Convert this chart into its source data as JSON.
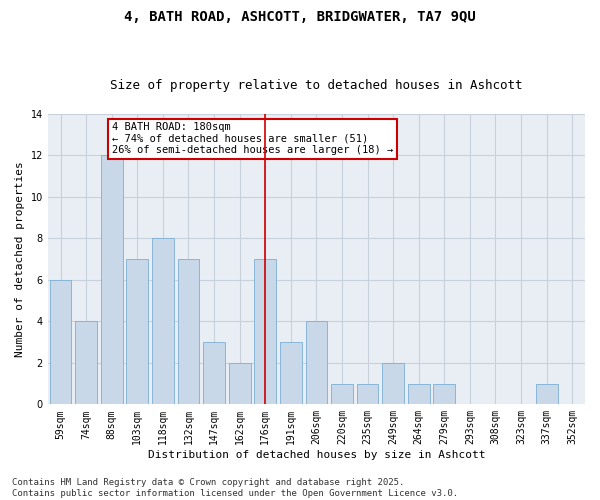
{
  "title_line1": "4, BATH ROAD, ASHCOTT, BRIDGWATER, TA7 9QU",
  "title_line2": "Size of property relative to detached houses in Ashcott",
  "xlabel": "Distribution of detached houses by size in Ashcott",
  "ylabel": "Number of detached properties",
  "categories": [
    "59sqm",
    "74sqm",
    "88sqm",
    "103sqm",
    "118sqm",
    "132sqm",
    "147sqm",
    "162sqm",
    "176sqm",
    "191sqm",
    "206sqm",
    "220sqm",
    "235sqm",
    "249sqm",
    "264sqm",
    "279sqm",
    "293sqm",
    "308sqm",
    "323sqm",
    "337sqm",
    "352sqm"
  ],
  "values": [
    6,
    4,
    12,
    7,
    8,
    7,
    3,
    2,
    7,
    3,
    4,
    1,
    1,
    2,
    1,
    1,
    0,
    0,
    0,
    1,
    0
  ],
  "bar_color": "#c8d8e8",
  "bar_edge_color": "#7bafd4",
  "highlight_index": 8,
  "highlight_line_color": "#cc0000",
  "annotation_text": "4 BATH ROAD: 180sqm\n← 74% of detached houses are smaller (51)\n26% of semi-detached houses are larger (18) →",
  "annotation_box_color": "#cc0000",
  "ylim": [
    0,
    14
  ],
  "yticks": [
    0,
    2,
    4,
    6,
    8,
    10,
    12,
    14
  ],
  "grid_color": "#c8d0dc",
  "background_color": "#e8eef4",
  "footer_text": "Contains HM Land Registry data © Crown copyright and database right 2025.\nContains public sector information licensed under the Open Government Licence v3.0.",
  "title_fontsize": 10,
  "subtitle_fontsize": 9,
  "axis_label_fontsize": 8,
  "tick_fontsize": 7,
  "annotation_fontsize": 7.5,
  "footer_fontsize": 6.5
}
